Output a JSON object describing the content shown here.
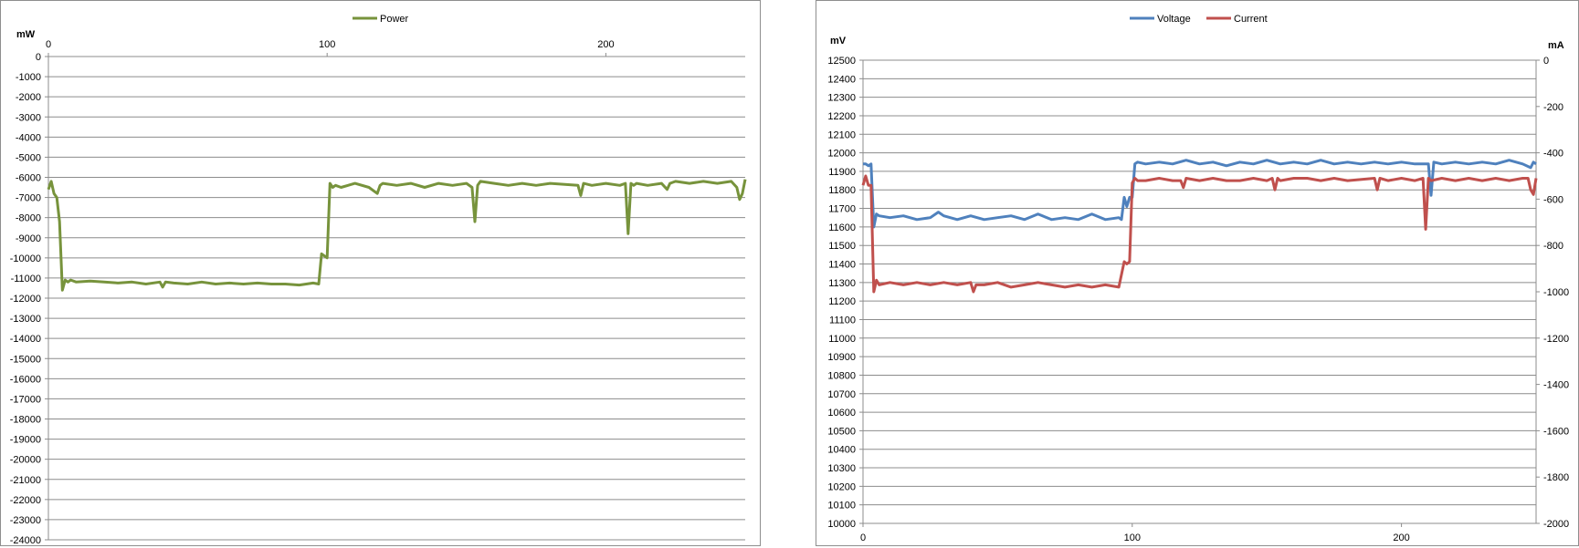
{
  "chart_data": [
    {
      "type": "line",
      "title": "",
      "ylabel": "mW",
      "xlabel": "",
      "xlim": [
        0,
        250
      ],
      "ylim": [
        -24000,
        0
      ],
      "x_ticks": [
        "0",
        "100",
        "200"
      ],
      "x_tick_values": [
        0,
        100,
        200
      ],
      "y_ticks": [
        "0",
        "-1000",
        "-2000",
        "-3000",
        "-4000",
        "-5000",
        "-6000",
        "-7000",
        "-8000",
        "-9000",
        "-10000",
        "-11000",
        "-12000",
        "-13000",
        "-14000",
        "-15000",
        "-16000",
        "-17000",
        "-18000",
        "-19000",
        "-20000",
        "-21000",
        "-22000",
        "-23000",
        "-24000"
      ],
      "y_tick_values": [
        0,
        -1000,
        -2000,
        -3000,
        -4000,
        -5000,
        -6000,
        -7000,
        -8000,
        -9000,
        -10000,
        -11000,
        -12000,
        -13000,
        -14000,
        -15000,
        -16000,
        -17000,
        -18000,
        -19000,
        -20000,
        -21000,
        -22000,
        -23000,
        -24000
      ],
      "grid": true,
      "legend_position": "top",
      "series": [
        {
          "name": "Power",
          "color": "#77933c",
          "x": [
            0,
            1,
            2,
            3,
            4,
            5,
            6,
            7,
            8,
            10,
            15,
            20,
            25,
            30,
            35,
            40,
            41,
            42,
            45,
            50,
            55,
            60,
            65,
            70,
            75,
            80,
            85,
            90,
            95,
            97,
            98,
            99,
            100,
            101,
            102,
            103,
            105,
            110,
            115,
            118,
            119,
            120,
            125,
            130,
            135,
            140,
            145,
            150,
            152,
            153,
            154,
            155,
            160,
            165,
            170,
            175,
            180,
            190,
            191,
            192,
            195,
            200,
            205,
            207,
            208,
            209,
            210,
            211,
            215,
            220,
            222,
            223,
            225,
            230,
            235,
            240,
            245,
            247,
            248,
            249,
            250
          ],
          "y": [
            -6600,
            -6200,
            -6800,
            -7000,
            -8200,
            -11600,
            -11100,
            -11200,
            -11100,
            -11200,
            -11150,
            -11200,
            -11250,
            -11200,
            -11300,
            -11200,
            -11450,
            -11200,
            -11250,
            -11300,
            -11200,
            -11300,
            -11250,
            -11300,
            -11250,
            -11300,
            -11300,
            -11350,
            -11250,
            -11300,
            -9800,
            -9900,
            -10000,
            -6300,
            -6500,
            -6400,
            -6500,
            -6300,
            -6500,
            -6800,
            -6400,
            -6300,
            -6400,
            -6300,
            -6500,
            -6300,
            -6400,
            -6300,
            -6500,
            -8200,
            -6400,
            -6200,
            -6300,
            -6400,
            -6300,
            -6400,
            -6300,
            -6400,
            -6900,
            -6300,
            -6400,
            -6300,
            -6400,
            -6300,
            -8800,
            -6300,
            -6400,
            -6300,
            -6400,
            -6300,
            -6600,
            -6300,
            -6200,
            -6300,
            -6200,
            -6300,
            -6200,
            -6500,
            -7100,
            -6800,
            -6100
          ]
        }
      ]
    },
    {
      "type": "line",
      "title": "",
      "ylabel": "mV",
      "y2label": "mA",
      "xlabel": "",
      "xlim": [
        0,
        250
      ],
      "ylim": [
        10000,
        12500
      ],
      "y2lim": [
        -2000,
        0
      ],
      "x_ticks": [
        "0",
        "100",
        "200"
      ],
      "x_tick_values": [
        0,
        100,
        200
      ],
      "y_ticks": [
        "12500",
        "12400",
        "12300",
        "12200",
        "12100",
        "12000",
        "11900",
        "11800",
        "11700",
        "11600",
        "11500",
        "11400",
        "11300",
        "11200",
        "11100",
        "11000",
        "10900",
        "10800",
        "10700",
        "10600",
        "10500",
        "10400",
        "10300",
        "10200",
        "10100",
        "10000"
      ],
      "y_tick_values": [
        12500,
        12400,
        12300,
        12200,
        12100,
        12000,
        11900,
        11800,
        11700,
        11600,
        11500,
        11400,
        11300,
        11200,
        11100,
        11000,
        10900,
        10800,
        10700,
        10600,
        10500,
        10400,
        10300,
        10200,
        10100,
        10000
      ],
      "y2_ticks": [
        "0",
        "-200",
        "-400",
        "-600",
        "-800",
        "-1000",
        "-1200",
        "-1400",
        "-1600",
        "-1800",
        "-2000"
      ],
      "y2_tick_values": [
        0,
        -200,
        -400,
        -600,
        -800,
        -1000,
        -1200,
        -1400,
        -1600,
        -1800,
        -2000
      ],
      "grid": true,
      "legend_position": "top",
      "series": [
        {
          "name": "Voltage",
          "color": "#4f81bd",
          "axis": "left",
          "x": [
            0,
            1,
            2,
            3,
            4,
            5,
            6,
            10,
            15,
            20,
            25,
            28,
            30,
            35,
            40,
            45,
            50,
            55,
            60,
            65,
            70,
            75,
            80,
            85,
            90,
            95,
            96,
            97,
            98,
            99,
            100,
            101,
            102,
            105,
            110,
            115,
            120,
            125,
            130,
            135,
            140,
            145,
            150,
            155,
            160,
            165,
            170,
            175,
            180,
            185,
            190,
            195,
            200,
            205,
            210,
            211,
            212,
            215,
            220,
            225,
            230,
            235,
            240,
            245,
            248,
            249,
            250
          ],
          "y": [
            11940,
            11940,
            11930,
            11940,
            11600,
            11670,
            11660,
            11650,
            11660,
            11640,
            11650,
            11680,
            11660,
            11640,
            11660,
            11640,
            11650,
            11660,
            11640,
            11670,
            11640,
            11650,
            11640,
            11670,
            11640,
            11650,
            11640,
            11760,
            11710,
            11760,
            11760,
            11940,
            11950,
            11940,
            11950,
            11940,
            11960,
            11940,
            11950,
            11930,
            11950,
            11940,
            11960,
            11940,
            11950,
            11940,
            11960,
            11940,
            11950,
            11940,
            11950,
            11940,
            11950,
            11940,
            11940,
            11770,
            11950,
            11940,
            11950,
            11940,
            11950,
            11940,
            11960,
            11940,
            11920,
            11950,
            11940
          ]
        },
        {
          "name": "Current",
          "color": "#c0504d",
          "axis": "right",
          "x": [
            0,
            1,
            2,
            3,
            4,
            5,
            6,
            10,
            15,
            20,
            25,
            30,
            35,
            40,
            41,
            42,
            45,
            50,
            55,
            60,
            65,
            70,
            75,
            80,
            85,
            90,
            95,
            97,
            98,
            99,
            100,
            101,
            102,
            105,
            110,
            115,
            118,
            119,
            120,
            125,
            130,
            135,
            140,
            145,
            150,
            152,
            153,
            154,
            155,
            160,
            165,
            170,
            175,
            180,
            190,
            191,
            192,
            195,
            200,
            205,
            208,
            209,
            210,
            211,
            215,
            220,
            225,
            230,
            235,
            240,
            245,
            247,
            248,
            249,
            250
          ],
          "y": [
            -540,
            -500,
            -540,
            -540,
            -1000,
            -950,
            -970,
            -960,
            -970,
            -960,
            -970,
            -960,
            -970,
            -960,
            -1000,
            -970,
            -970,
            -960,
            -980,
            -970,
            -960,
            -970,
            -980,
            -970,
            -980,
            -970,
            -980,
            -870,
            -880,
            -870,
            -530,
            -510,
            -520,
            -520,
            -510,
            -520,
            -520,
            -550,
            -510,
            -520,
            -510,
            -520,
            -520,
            -510,
            -520,
            -510,
            -560,
            -510,
            -520,
            -510,
            -510,
            -520,
            -510,
            -520,
            -510,
            -560,
            -510,
            -520,
            -510,
            -520,
            -510,
            -730,
            -510,
            -520,
            -510,
            -520,
            -510,
            -520,
            -510,
            -520,
            -510,
            -510,
            -560,
            -580,
            -510
          ]
        }
      ]
    }
  ]
}
